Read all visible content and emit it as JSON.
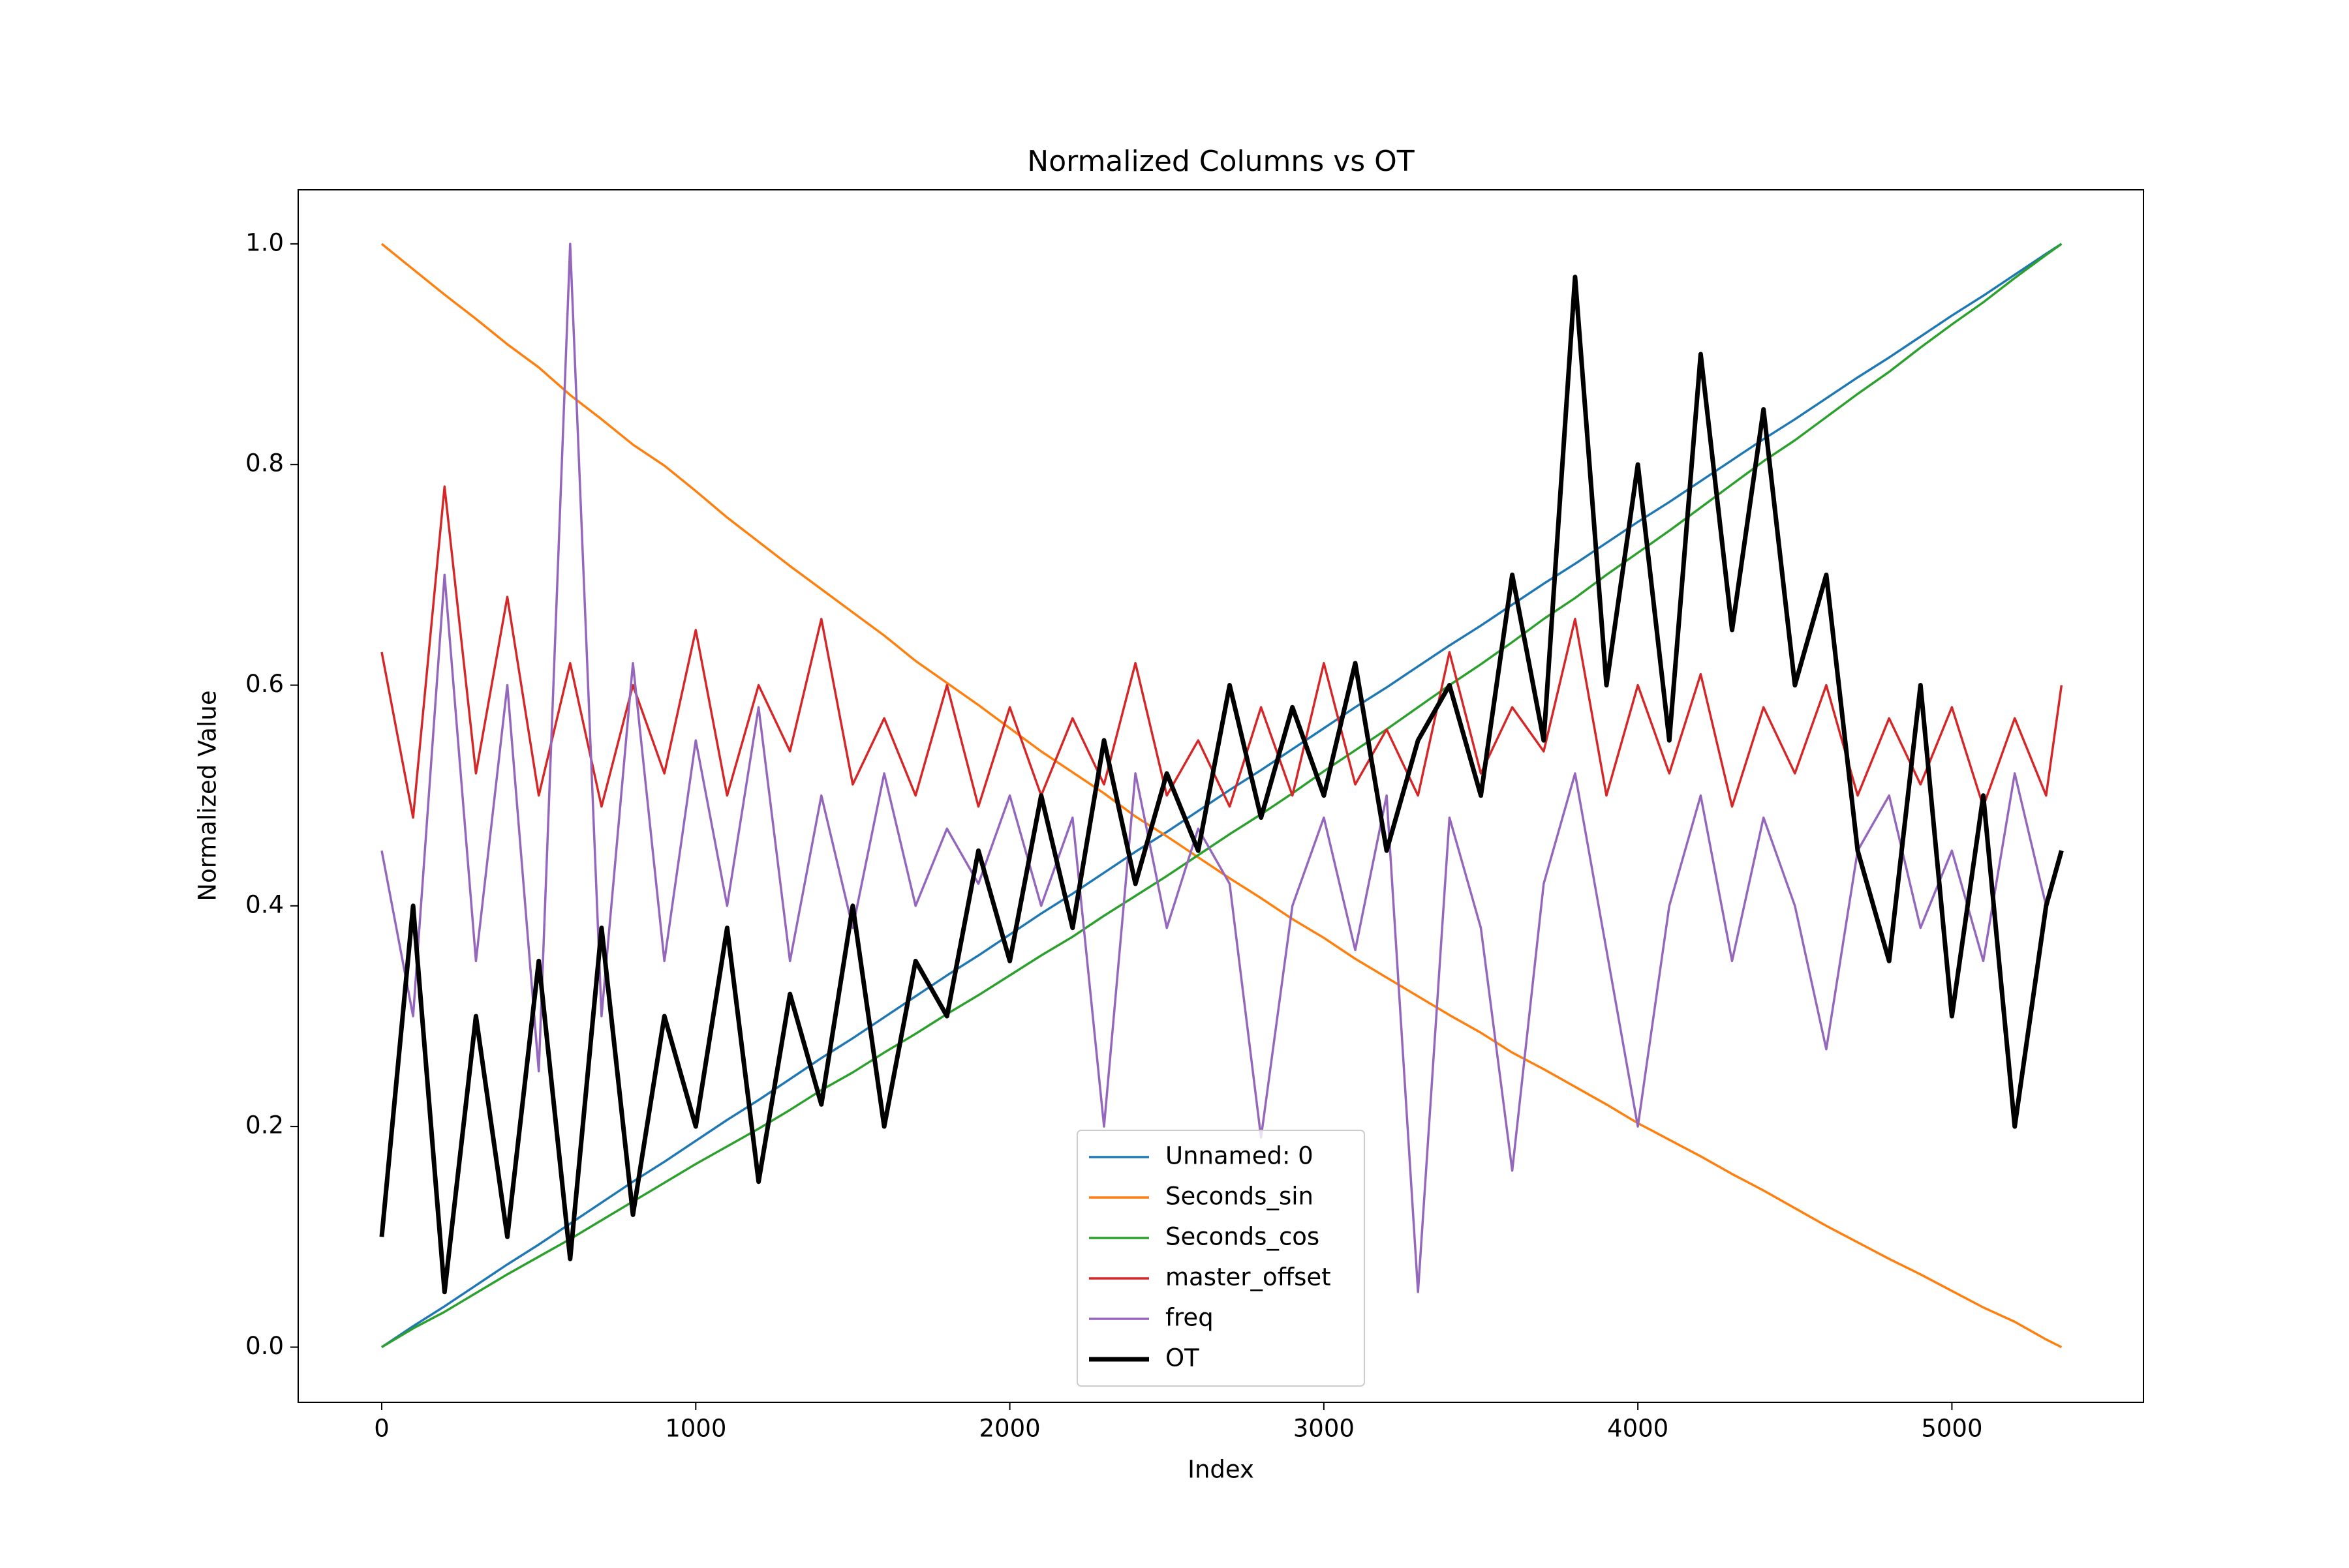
{
  "chart_data": {
    "type": "line",
    "title": "Normalized Columns vs OT",
    "xlabel": "Index",
    "ylabel": "Normalized Value",
    "x": [
      0,
      100,
      200,
      300,
      400,
      500,
      600,
      700,
      800,
      900,
      1000,
      1100,
      1200,
      1300,
      1400,
      1500,
      1600,
      1700,
      1800,
      1900,
      2000,
      2100,
      2200,
      2300,
      2400,
      2500,
      2600,
      2700,
      2800,
      2900,
      3000,
      3100,
      3200,
      3300,
      3400,
      3500,
      3600,
      3700,
      3800,
      3900,
      4000,
      4100,
      4200,
      4300,
      4400,
      4500,
      4600,
      4700,
      4800,
      4900,
      5000,
      5100,
      5200,
      5300,
      5349
    ],
    "series": [
      {
        "name": "Unnamed: 0",
        "color": "#1f77b4",
        "width": 1.5,
        "values": [
          0,
          0.019,
          0.037,
          0.056,
          0.075,
          0.093,
          0.112,
          0.131,
          0.15,
          0.168,
          0.187,
          0.206,
          0.224,
          0.243,
          0.262,
          0.28,
          0.299,
          0.318,
          0.337,
          0.355,
          0.374,
          0.393,
          0.411,
          0.43,
          0.449,
          0.467,
          0.486,
          0.505,
          0.523,
          0.542,
          0.561,
          0.58,
          0.598,
          0.617,
          0.636,
          0.654,
          0.673,
          0.692,
          0.71,
          0.729,
          0.748,
          0.766,
          0.785,
          0.804,
          0.823,
          0.841,
          0.86,
          0.879,
          0.897,
          0.916,
          0.935,
          0.953,
          0.972,
          0.991,
          1.0
        ]
      },
      {
        "name": "Seconds_sin",
        "color": "#ff7f0e",
        "width": 1.5,
        "values": [
          1,
          0.977,
          0.954,
          0.932,
          0.909,
          0.888,
          0.863,
          0.841,
          0.818,
          0.799,
          0.776,
          0.752,
          0.73,
          0.708,
          0.687,
          0.666,
          0.645,
          0.622,
          0.602,
          0.582,
          0.561,
          0.54,
          0.521,
          0.502,
          0.481,
          0.463,
          0.444,
          0.425,
          0.407,
          0.388,
          0.371,
          0.352,
          0.335,
          0.318,
          0.301,
          0.285,
          0.267,
          0.252,
          0.236,
          0.22,
          0.203,
          0.188,
          0.173,
          0.157,
          0.142,
          0.126,
          0.11,
          0.095,
          0.08,
          0.066,
          0.051,
          0.036,
          0.023,
          0.007,
          0
        ]
      },
      {
        "name": "Seconds_cos",
        "color": "#2ca02c",
        "width": 1.5,
        "values": [
          0,
          0.017,
          0.032,
          0.049,
          0.066,
          0.082,
          0.098,
          0.115,
          0.132,
          0.149,
          0.166,
          0.182,
          0.198,
          0.215,
          0.233,
          0.249,
          0.267,
          0.284,
          0.302,
          0.319,
          0.337,
          0.355,
          0.372,
          0.391,
          0.409,
          0.427,
          0.446,
          0.465,
          0.483,
          0.502,
          0.522,
          0.541,
          0.56,
          0.58,
          0.6,
          0.619,
          0.639,
          0.66,
          0.679,
          0.7,
          0.72,
          0.74,
          0.761,
          0.782,
          0.803,
          0.822,
          0.843,
          0.864,
          0.884,
          0.906,
          0.927,
          0.947,
          0.969,
          0.99,
          1.0
        ]
      },
      {
        "name": "master_offset",
        "color": "#d62728",
        "width": 1.5,
        "values": [
          0.63,
          0.48,
          0.78,
          0.52,
          0.68,
          0.5,
          0.62,
          0.49,
          0.6,
          0.52,
          0.65,
          0.5,
          0.6,
          0.54,
          0.66,
          0.51,
          0.57,
          0.5,
          0.6,
          0.49,
          0.58,
          0.5,
          0.57,
          0.51,
          0.62,
          0.5,
          0.55,
          0.49,
          0.58,
          0.5,
          0.62,
          0.51,
          0.56,
          0.5,
          0.63,
          0.52,
          0.58,
          0.54,
          0.66,
          0.5,
          0.6,
          0.52,
          0.61,
          0.49,
          0.58,
          0.52,
          0.6,
          0.5,
          0.57,
          0.51,
          0.58,
          0.49,
          0.57,
          0.5,
          0.6
        ]
      },
      {
        "name": "freq",
        "color": "#9467bd",
        "width": 1.5,
        "values": [
          0.45,
          0.3,
          0.7,
          0.35,
          0.6,
          0.25,
          1.0,
          0.3,
          0.62,
          0.35,
          0.55,
          0.4,
          0.58,
          0.35,
          0.5,
          0.38,
          0.52,
          0.4,
          0.47,
          0.42,
          0.5,
          0.4,
          0.48,
          0.2,
          0.52,
          0.38,
          0.47,
          0.42,
          0.19,
          0.4,
          0.48,
          0.36,
          0.5,
          0.05,
          0.48,
          0.38,
          0.16,
          0.42,
          0.52,
          0.36,
          0.2,
          0.4,
          0.5,
          0.35,
          0.48,
          0.4,
          0.27,
          0.45,
          0.5,
          0.38,
          0.45,
          0.35,
          0.52,
          0.4,
          0.45
        ]
      },
      {
        "name": "OT",
        "color": "#000000",
        "width": 3,
        "values": [
          0.1,
          0.4,
          0.05,
          0.3,
          0.1,
          0.35,
          0.08,
          0.38,
          0.12,
          0.3,
          0.2,
          0.38,
          0.15,
          0.32,
          0.22,
          0.4,
          0.2,
          0.35,
          0.3,
          0.45,
          0.35,
          0.5,
          0.38,
          0.55,
          0.42,
          0.52,
          0.45,
          0.6,
          0.48,
          0.58,
          0.5,
          0.62,
          0.45,
          0.55,
          0.6,
          0.5,
          0.7,
          0.55,
          0.97,
          0.6,
          0.8,
          0.55,
          0.9,
          0.65,
          0.85,
          0.6,
          0.7,
          0.45,
          0.35,
          0.6,
          0.3,
          0.5,
          0.2,
          0.4,
          0.45
        ]
      }
    ],
    "xlim": [
      -266,
      5610
    ],
    "xticks": [
      0,
      1000,
      2000,
      3000,
      4000,
      5000
    ],
    "ylim": [
      -0.05,
      1.049
    ],
    "yticks": [
      {
        "value": 0,
        "label": "0.0"
      },
      0.2,
      0.4,
      0.6,
      0.8,
      {
        "value": 1,
        "label": "1.0"
      }
    ],
    "legend": "lower center",
    "grid": false
  }
}
